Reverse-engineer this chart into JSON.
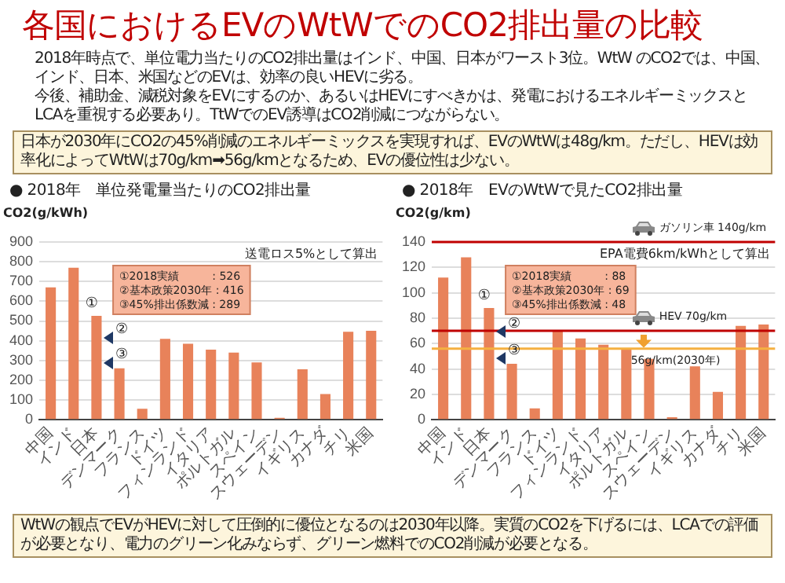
{
  "chart_data": [
    {
      "type": "other",
      "title": "各国におけるEVのWtWでのCO2排出量の比較",
      "annotations": [
        "2018年時点で、単位電力当たりのCO2排出量はインド、中国、日本がワースト3位。WtW のCO2では、中国、インド、日本、米国などのEVは、効率の良いHEVに劣る。",
        "今後、補助金、減税対象をEVにするのか、あるいはHEVにすべきかは、発電におけるエネルギーミックスとLCAを重視する必要あり。TtWでのEV誘導はCO2削減につながらない。"
      ]
    },
    {
      "type": "other",
      "annotations": [
        "日本が2030年にCO2の45%削減のエネルギーミックスを実現すれば、EVのWtWは48g/km。ただし、HEVは効率化によってWtWは70g/km➡56g/kmとなるため、EVの優位性は少ない。"
      ]
    },
    {
      "type": "bar",
      "title": "● 2018年　単位発電量当たりのCO2排出量",
      "ylabel": "CO2(g/kWh)",
      "categories": [
        "中国",
        "インド",
        "日本",
        "デンマーク",
        "フランス",
        "ドイツ",
        "フィンランド",
        "イタリア",
        "ポルトガル",
        "スペイン",
        "スウェーデン",
        "イギリス",
        "カナダ",
        "チリ",
        "米国"
      ],
      "values": [
        670,
        770,
        526,
        260,
        55,
        410,
        385,
        355,
        340,
        290,
        10,
        255,
        130,
        445,
        450
      ],
      "color": "#e8825a",
      "ylim": [
        0,
        900
      ],
      "yticks": [
        0,
        100,
        200,
        300,
        400,
        500,
        600,
        700,
        800,
        900
      ],
      "grid": "y",
      "annotations": [
        "送電ロス5%として算出",
        "①2018実績　　　: 526",
        "②基本政策2030年 : 416",
        "③45%排出係数減 : 289",
        {
          "text": "①",
          "x": "日本",
          "y": 526
        },
        {
          "text": "②",
          "x": "日本",
          "y": 416
        },
        {
          "text": "③",
          "x": "日本",
          "y": 289
        }
      ]
    },
    {
      "type": "bar",
      "title": "● 2018年　EVのWtWで見たCO2排出量",
      "ylabel": "CO2(g/km)",
      "categories": [
        "中国",
        "インド",
        "日本",
        "デンマーク",
        "フランス",
        "ドイツ",
        "フィンランド",
        "イタリア",
        "ポルトガル",
        "スペイン",
        "スウェーデン",
        "イギリス",
        "カナダ",
        "チリ",
        "米国"
      ],
      "values": [
        112,
        128,
        88,
        44,
        9,
        70,
        64,
        59,
        56,
        48,
        2,
        42,
        22,
        74,
        75
      ],
      "color": "#e8825a",
      "ylim": [
        0,
        140
      ],
      "yticks": [
        0,
        20,
        40,
        60,
        80,
        100,
        120,
        140
      ],
      "grid": "y",
      "ref_lines": [
        {
          "axis": "y",
          "value": 140,
          "label": "ガソリン車 140g/km",
          "color": "#c00000"
        },
        {
          "axis": "y",
          "value": 70,
          "label": "HEV 70g/km",
          "color": "#c00000"
        },
        {
          "axis": "y",
          "value": 56,
          "label": "56g/km(2030年)",
          "color": "#f5b041"
        }
      ],
      "annotations": [
        "EPA電費6km/kWhとして算出",
        "①2018実績　　　: 88",
        "②基本政策2030年 : 69",
        "③45%排出係数減 : 48",
        {
          "text": "①",
          "x": "日本",
          "y": 88
        },
        {
          "text": "②",
          "x": "日本",
          "y": 69
        },
        {
          "text": "③",
          "x": "日本",
          "y": 48
        }
      ]
    },
    {
      "type": "other",
      "annotations": [
        "WtWの観点でEVがHEVに対して圧倒的に優位となるのは2030年以降。実質のCO2を下げるには、LCAでの評価が必要となり、電力のグリーン化みならず、グリーン燃料でのCO2削減が必要となる。"
      ]
    }
  ]
}
